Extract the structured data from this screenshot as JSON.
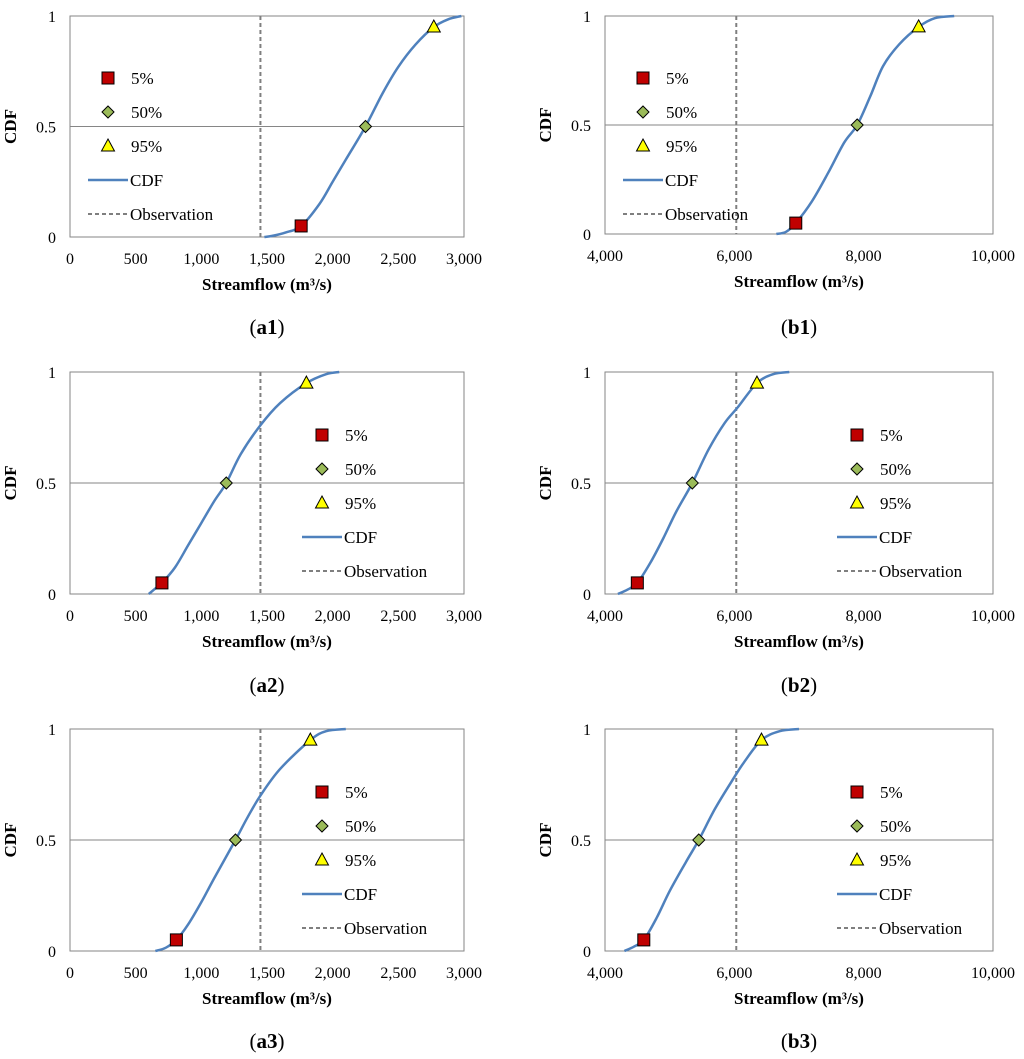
{
  "legend": {
    "p5": "5%",
    "p50": "50%",
    "p95": "95%",
    "cdf": "CDF",
    "obs": "Observation"
  },
  "colors": {
    "cdf_line": "#4f81bd",
    "obs_line": "#7f7f7f",
    "p5_marker": "#c00000",
    "p50_marker": "#9bbb59",
    "p95_marker": "#ffff00"
  },
  "chart_data": [
    {
      "id": "a1",
      "type": "line",
      "caption_open": "(",
      "caption_label": "a1",
      "caption_close": ")",
      "xlabel": "Streamflow (m³/s)",
      "ylabel": "CDF",
      "xlim": [
        0,
        3000
      ],
      "ylim": [
        0,
        1
      ],
      "xticks": [
        0,
        500,
        1000,
        1500,
        2000,
        2500,
        3000
      ],
      "xtick_labels": [
        "0",
        "500",
        "1,000",
        "1,500",
        "2,000",
        "2,500",
        "3,000"
      ],
      "yticks": [
        0,
        0.5,
        1
      ],
      "ytick_labels": [
        "0",
        "0.5",
        "1"
      ],
      "legend_position": "left",
      "observation": 1450,
      "points": {
        "p5": [
          1760,
          0.05
        ],
        "p50": [
          2250,
          0.5
        ],
        "p95": [
          2770,
          0.95
        ]
      },
      "cdf": [
        [
          1480,
          0
        ],
        [
          1540,
          0.005
        ],
        [
          1640,
          0.02
        ],
        [
          1760,
          0.05
        ],
        [
          1900,
          0.15
        ],
        [
          2000,
          0.25
        ],
        [
          2100,
          0.35
        ],
        [
          2250,
          0.5
        ],
        [
          2380,
          0.65
        ],
        [
          2500,
          0.77
        ],
        [
          2630,
          0.87
        ],
        [
          2770,
          0.95
        ],
        [
          2880,
          0.985
        ],
        [
          2980,
          1
        ]
      ]
    },
    {
      "id": "b1",
      "type": "line",
      "caption_open": "(",
      "caption_label": "b1",
      "caption_close": ")",
      "xlabel": "Streamflow (m³/s)",
      "ylabel": "CDF",
      "xlim": [
        4000,
        10000
      ],
      "ylim": [
        0,
        1
      ],
      "xticks": [
        4000,
        6000,
        8000,
        10000
      ],
      "xtick_labels": [
        "4,000",
        "6,000",
        "8,000",
        "10,000"
      ],
      "yticks": [
        0,
        0.5,
        1
      ],
      "ytick_labels": [
        "0",
        "0.5",
        "1"
      ],
      "legend_position": "left",
      "observation": 6030,
      "points": {
        "p5": [
          6950,
          0.05
        ],
        "p50": [
          7900,
          0.5
        ],
        "p95": [
          8850,
          0.95
        ]
      },
      "cdf": [
        [
          6650,
          0
        ],
        [
          6800,
          0.01
        ],
        [
          6950,
          0.05
        ],
        [
          7200,
          0.15
        ],
        [
          7450,
          0.28
        ],
        [
          7700,
          0.42
        ],
        [
          7900,
          0.5
        ],
        [
          8100,
          0.63
        ],
        [
          8300,
          0.77
        ],
        [
          8550,
          0.87
        ],
        [
          8850,
          0.95
        ],
        [
          9100,
          0.99
        ],
        [
          9400,
          1
        ]
      ]
    },
    {
      "id": "a2",
      "type": "line",
      "caption_open": "(",
      "caption_label": "a2",
      "caption_close": ")",
      "xlabel": "Streamflow (m³/s)",
      "ylabel": "CDF",
      "xlim": [
        0,
        3000
      ],
      "ylim": [
        0,
        1
      ],
      "xticks": [
        0,
        500,
        1000,
        1500,
        2000,
        2500,
        3000
      ],
      "xtick_labels": [
        "0",
        "500",
        "1,000",
        "1,500",
        "2,000",
        "2,500",
        "3,000"
      ],
      "yticks": [
        0,
        0.5,
        1
      ],
      "ytick_labels": [
        "0",
        "0.5",
        "1"
      ],
      "legend_position": "right",
      "observation": 1450,
      "points": {
        "p5": [
          700,
          0.05
        ],
        "p50": [
          1190,
          0.5
        ],
        "p95": [
          1800,
          0.95
        ]
      },
      "cdf": [
        [
          600,
          0
        ],
        [
          640,
          0.02
        ],
        [
          700,
          0.05
        ],
        [
          800,
          0.12
        ],
        [
          900,
          0.22
        ],
        [
          1000,
          0.32
        ],
        [
          1100,
          0.42
        ],
        [
          1190,
          0.5
        ],
        [
          1300,
          0.63
        ],
        [
          1450,
          0.76
        ],
        [
          1600,
          0.86
        ],
        [
          1800,
          0.95
        ],
        [
          1950,
          0.99
        ],
        [
          2050,
          1
        ]
      ]
    },
    {
      "id": "b2",
      "type": "line",
      "caption_open": "(",
      "caption_label": "b2",
      "caption_close": ")",
      "xlabel": "Streamflow (m³/s)",
      "ylabel": "CDF",
      "xlim": [
        4000,
        10000
      ],
      "ylim": [
        0,
        1
      ],
      "xticks": [
        4000,
        6000,
        8000,
        10000
      ],
      "xtick_labels": [
        "4,000",
        "6,000",
        "8,000",
        "10,000"
      ],
      "yticks": [
        0,
        0.5,
        1
      ],
      "ytick_labels": [
        "0",
        "0.5",
        "1"
      ],
      "legend_position": "right",
      "observation": 6030,
      "points": {
        "p5": [
          4500,
          0.05
        ],
        "p50": [
          5350,
          0.5
        ],
        "p95": [
          6350,
          0.95
        ]
      },
      "cdf": [
        [
          4200,
          0
        ],
        [
          4350,
          0.02
        ],
        [
          4500,
          0.05
        ],
        [
          4700,
          0.14
        ],
        [
          4900,
          0.25
        ],
        [
          5100,
          0.37
        ],
        [
          5350,
          0.5
        ],
        [
          5600,
          0.65
        ],
        [
          5850,
          0.77
        ],
        [
          6050,
          0.84
        ],
        [
          6350,
          0.95
        ],
        [
          6600,
          0.99
        ],
        [
          6850,
          1
        ]
      ]
    },
    {
      "id": "a3",
      "type": "line",
      "caption_open": "(",
      "caption_label": "a3",
      "caption_close": ")",
      "xlabel": "Streamflow (m³/s)",
      "ylabel": "CDF",
      "xlim": [
        0,
        3000
      ],
      "ylim": [
        0,
        1
      ],
      "xticks": [
        0,
        500,
        1000,
        1500,
        2000,
        2500,
        3000
      ],
      "xtick_labels": [
        "0",
        "500",
        "1,000",
        "1,500",
        "2,000",
        "2,500",
        "3,000"
      ],
      "yticks": [
        0,
        0.5,
        1
      ],
      "ytick_labels": [
        "0",
        "0.5",
        "1"
      ],
      "legend_position": "right",
      "observation": 1450,
      "points": {
        "p5": [
          810,
          0.05
        ],
        "p50": [
          1260,
          0.5
        ],
        "p95": [
          1830,
          0.95
        ]
      },
      "cdf": [
        [
          650,
          0
        ],
        [
          730,
          0.015
        ],
        [
          810,
          0.05
        ],
        [
          900,
          0.12
        ],
        [
          1000,
          0.22
        ],
        [
          1100,
          0.33
        ],
        [
          1260,
          0.5
        ],
        [
          1350,
          0.6
        ],
        [
          1450,
          0.7
        ],
        [
          1600,
          0.82
        ],
        [
          1830,
          0.95
        ],
        [
          1950,
          0.99
        ],
        [
          2100,
          1
        ]
      ]
    },
    {
      "id": "b3",
      "type": "line",
      "caption_open": "(",
      "caption_label": "b3",
      "caption_close": ")",
      "xlabel": "Streamflow (m³/s)",
      "ylabel": "CDF",
      "xlim": [
        4000,
        10000
      ],
      "ylim": [
        0,
        1
      ],
      "xticks": [
        4000,
        6000,
        8000,
        10000
      ],
      "xtick_labels": [
        "4,000",
        "6,000",
        "8,000",
        "10,000"
      ],
      "yticks": [
        0,
        0.5,
        1
      ],
      "ytick_labels": [
        "0",
        "0.5",
        "1"
      ],
      "legend_position": "right",
      "observation": 6030,
      "points": {
        "p5": [
          4600,
          0.05
        ],
        "p50": [
          5450,
          0.5
        ],
        "p95": [
          6420,
          0.95
        ]
      },
      "cdf": [
        [
          4300,
          0
        ],
        [
          4450,
          0.02
        ],
        [
          4600,
          0.05
        ],
        [
          4800,
          0.15
        ],
        [
          5000,
          0.27
        ],
        [
          5250,
          0.4
        ],
        [
          5450,
          0.5
        ],
        [
          5700,
          0.64
        ],
        [
          5950,
          0.76
        ],
        [
          6150,
          0.85
        ],
        [
          6420,
          0.95
        ],
        [
          6700,
          0.99
        ],
        [
          7000,
          1
        ]
      ]
    }
  ]
}
